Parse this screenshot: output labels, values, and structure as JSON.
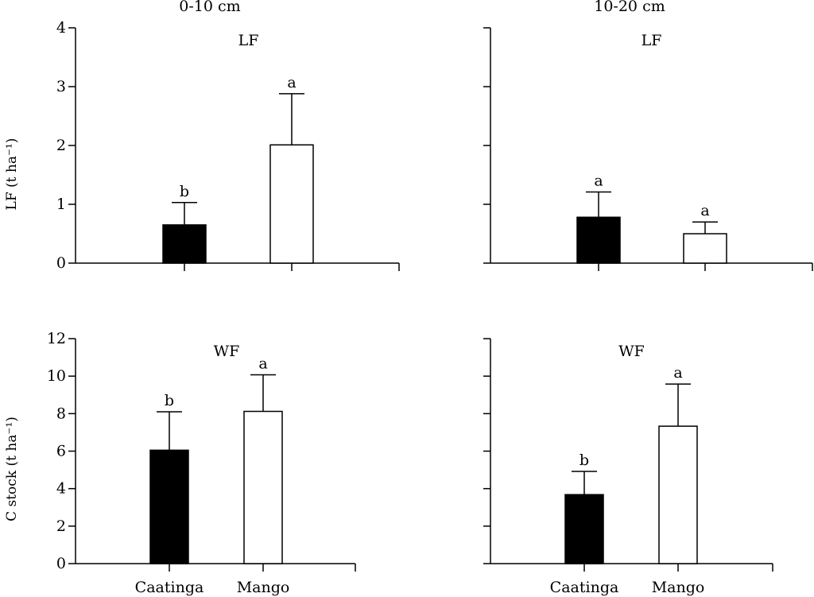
{
  "column_titles": [
    "0-10 cm",
    "10-20 cm"
  ],
  "row_axis_titles": [
    "LF (t ha⁻¹)",
    "C stock (t ha⁻¹)"
  ],
  "colors": {
    "Caatinga": "#000000",
    "Mango": "#ffffff",
    "axis": "#000000"
  },
  "chart_data": [
    {
      "type": "bar",
      "title": "LF",
      "depth": "0-10 cm",
      "categories": [
        "Caatinga",
        "Mango"
      ],
      "values": [
        0.65,
        2.01
      ],
      "errors": [
        0.38,
        0.87
      ],
      "significance": [
        "b",
        "a"
      ],
      "ylim": [
        0,
        4
      ],
      "yticks": [
        0,
        1,
        2,
        3,
        4
      ],
      "ylabel": "LF (t ha⁻¹)",
      "show_ytick_labels": true,
      "show_category_labels": false
    },
    {
      "type": "bar",
      "title": "LF",
      "depth": "10-20 cm",
      "categories": [
        "Caatinga",
        "Mango"
      ],
      "values": [
        0.78,
        0.5
      ],
      "errors": [
        0.43,
        0.2
      ],
      "significance": [
        "a",
        "a"
      ],
      "ylim": [
        0,
        4
      ],
      "yticks": [
        0,
        1,
        2,
        3,
        4
      ],
      "ylabel": "",
      "show_ytick_labels": false,
      "show_category_labels": false
    },
    {
      "type": "bar",
      "title": "WF",
      "depth": "0-10 cm",
      "categories": [
        "Caatinga",
        "Mango"
      ],
      "values": [
        6.05,
        8.12
      ],
      "errors": [
        2.05,
        1.95
      ],
      "significance": [
        "b",
        "a"
      ],
      "ylim": [
        0,
        12
      ],
      "yticks": [
        0,
        2,
        4,
        6,
        8,
        10,
        12
      ],
      "ylabel": "C stock (t ha⁻¹)",
      "show_ytick_labels": true,
      "show_category_labels": true
    },
    {
      "type": "bar",
      "title": "WF",
      "depth": "10-20 cm",
      "categories": [
        "Caatinga",
        "Mango"
      ],
      "values": [
        3.68,
        7.33
      ],
      "errors": [
        1.24,
        2.25
      ],
      "significance": [
        "b",
        "a"
      ],
      "ylim": [
        0,
        12
      ],
      "yticks": [
        0,
        2,
        4,
        6,
        8,
        10,
        12
      ],
      "ylabel": "",
      "show_ytick_labels": false,
      "show_category_labels": true
    }
  ]
}
